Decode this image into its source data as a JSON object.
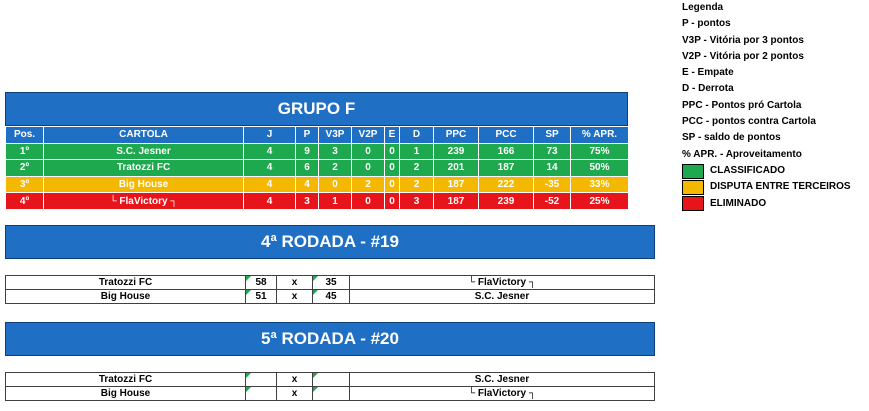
{
  "legend": {
    "title": "Legenda",
    "items": [
      "P - pontos",
      "V3P - Vitória por 3 pontos",
      "V2P - Vitória por 2 pontos",
      "E - Empate",
      "D - Derrota",
      "PPC - Pontos pró Cartola",
      "PCC - pontos contra Cartola",
      "SP - saldo de pontos",
      "% APR. - Aproveitamento"
    ],
    "status": [
      {
        "label": "CLASSIFICADO",
        "color": "#1fa94f"
      },
      {
        "label": "DISPUTA ENTRE TERCEIROS",
        "color": "#f5b800"
      },
      {
        "label": "ELIMINADO",
        "color": "#e8141b"
      }
    ]
  },
  "group": {
    "title": "GRUPO F",
    "headers": [
      "Pos.",
      "CARTOLA",
      "J",
      "P",
      "V3P",
      "V2P",
      "E",
      "D",
      "PPC",
      "PCC",
      "SP",
      "% APR."
    ],
    "rows": [
      {
        "pos": "1º",
        "team": "S.C. Jesner",
        "j": "4",
        "p": "9",
        "v3p": "3",
        "v2p": "0",
        "e": "0",
        "d": "1",
        "ppc": "239",
        "pcc": "166",
        "sp": "73",
        "apr": "75%",
        "status": "green"
      },
      {
        "pos": "2º",
        "team": "Tratozzi FC",
        "j": "4",
        "p": "6",
        "v3p": "2",
        "v2p": "0",
        "e": "0",
        "d": "2",
        "ppc": "201",
        "pcc": "187",
        "sp": "14",
        "apr": "50%",
        "status": "green"
      },
      {
        "pos": "3º",
        "team": "Big House",
        "j": "4",
        "p": "4",
        "v3p": "0",
        "v2p": "2",
        "e": "0",
        "d": "2",
        "ppc": "187",
        "pcc": "222",
        "sp": "-35",
        "apr": "33%",
        "status": "yellow"
      },
      {
        "pos": "4º",
        "team": "└ FlaVictory ┐",
        "j": "4",
        "p": "3",
        "v3p": "1",
        "v2p": "0",
        "e": "0",
        "d": "3",
        "ppc": "187",
        "pcc": "239",
        "sp": "-52",
        "apr": "25%",
        "status": "red"
      }
    ]
  },
  "rounds": [
    {
      "title": "4ª RODADA - #19",
      "matches": [
        {
          "home": "Tratozzi FC",
          "home_score": "58",
          "sep": "x",
          "away_score": "35",
          "away": "└ FlaVictory ┐"
        },
        {
          "home": "Big House",
          "home_score": "51",
          "sep": "x",
          "away_score": "45",
          "away": "S.C. Jesner"
        }
      ]
    },
    {
      "title": "5ª RODADA - #20",
      "matches": [
        {
          "home": "Tratozzi FC",
          "home_score": "",
          "sep": "x",
          "away_score": "",
          "away": "S.C. Jesner"
        },
        {
          "home": "Big House",
          "home_score": "",
          "sep": "x",
          "away_score": "",
          "away": "└ FlaVictory ┐"
        }
      ]
    }
  ]
}
